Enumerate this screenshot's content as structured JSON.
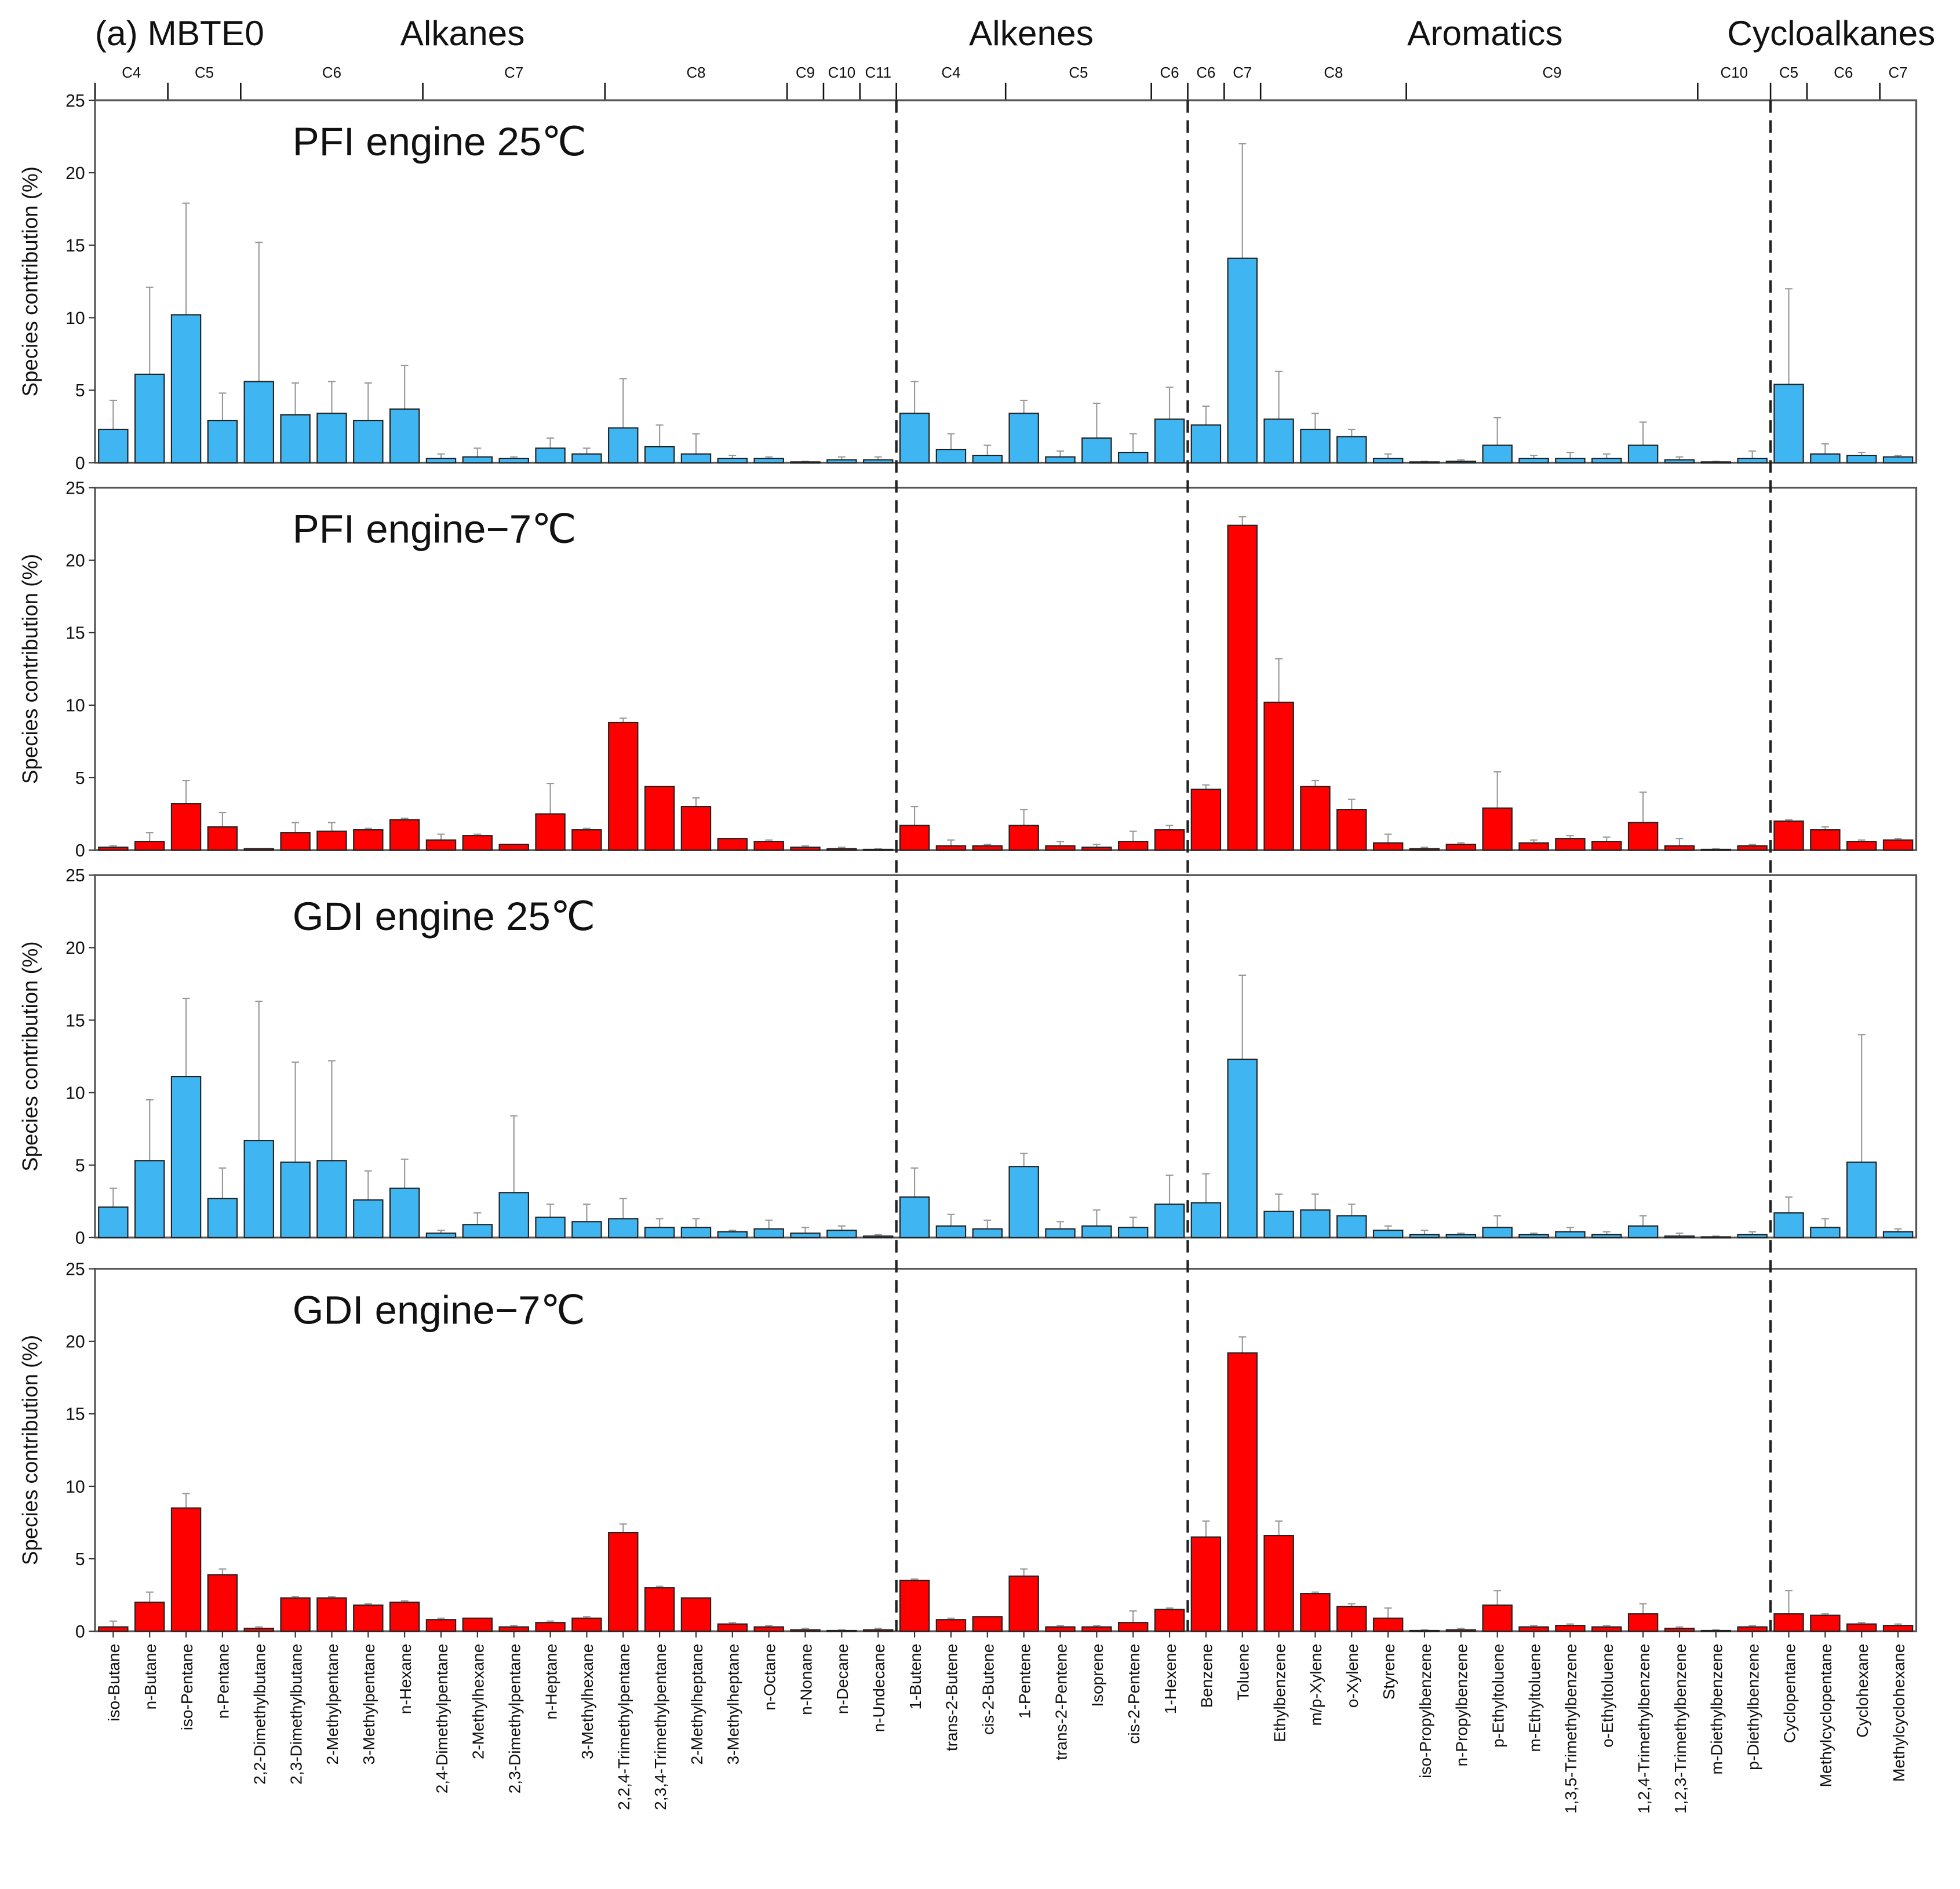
{
  "chart_data": {
    "type": "bar",
    "title": "(a) MBTE0",
    "ylabel": "Species contribution (%)",
    "ylim": [
      0,
      25
    ],
    "yticks": [
      0,
      5,
      10,
      15,
      20,
      25
    ],
    "families": [
      {
        "name": "Alkanes",
        "count": 22,
        "carbon_groups": [
          [
            "C4",
            2
          ],
          [
            "C5",
            2
          ],
          [
            "C6",
            5
          ],
          [
            "C7",
            5
          ],
          [
            "C8",
            5
          ],
          [
            "C9",
            1
          ],
          [
            "C10",
            1
          ],
          [
            "C11",
            1
          ]
        ]
      },
      {
        "name": "Alkenes",
        "count": 8,
        "carbon_groups": [
          [
            "C4",
            3
          ],
          [
            "C5",
            4
          ],
          [
            "C6",
            1
          ]
        ]
      },
      {
        "name": "Aromatics",
        "count": 16,
        "carbon_groups": [
          [
            "C6",
            1
          ],
          [
            "C7",
            1
          ],
          [
            "C8",
            4
          ],
          [
            "C9",
            8
          ],
          [
            "C10",
            2
          ]
        ]
      },
      {
        "name": "Cycloalkanes",
        "count": 4,
        "carbon_groups": [
          [
            "C5",
            1
          ],
          [
            "C6",
            2
          ],
          [
            "C7",
            1
          ]
        ]
      }
    ],
    "categories": [
      "iso-Butane",
      "n-Butane",
      "iso-Pentane",
      "n-Pentane",
      "2,2-Dimethylbutane",
      "2,3-Dimethylbutane",
      "2-Methylpentane",
      "3-Methylpentane",
      "n-Hexane",
      "2,4-Dimethylpentane",
      "2-Methylhexane",
      "2,3-Dimethylpentane",
      "n-Heptane",
      "3-Methylhexane",
      "2,2,4-Trimethylpentane",
      "2,3,4-Trimethylpentane",
      "2-Methylheptane",
      "3-Methylheptane",
      "n-Octane",
      "n-Nonane",
      "n-Decane",
      "n-Undecane",
      "1-Butene",
      "trans-2-Butene",
      "cis-2-Butene",
      "1-Pentene",
      "trans-2-Pentene",
      "Isoprene",
      "cis-2-Pentene",
      "1-Hexene",
      "Benzene",
      "Toluene",
      "Ethylbenzene",
      "m/p-Xylene",
      "o-Xylene",
      "Styrene",
      "iso-Propylbenzene",
      "n-Propylbenzene",
      "p-Ethyltoluene",
      "m-Ethyltoluene",
      "1,3,5-Trimethylbenzene",
      "o-Ethyltoluene",
      "1,2,4-Trimethylbenzene",
      "1,2,3-Trimethylbenzene",
      "m-Diethylbenzene",
      "p-Diethylbenzene",
      "Cyclopentane",
      "Methylcyclopentane",
      "Cyclohexane",
      "Methylcyclohexane"
    ],
    "series": [
      {
        "name": "PFI engine 25℃",
        "color": "#3fb6f2",
        "values": [
          2.3,
          6.1,
          10.2,
          2.9,
          5.6,
          3.3,
          3.4,
          2.9,
          3.7,
          0.3,
          0.4,
          0.3,
          1.0,
          0.6,
          2.4,
          1.1,
          0.6,
          0.3,
          0.3,
          0.05,
          0.2,
          0.2,
          3.4,
          0.9,
          0.5,
          3.4,
          0.4,
          1.7,
          0.7,
          3.0,
          2.6,
          14.1,
          3.0,
          2.3,
          1.8,
          0.3,
          0.05,
          0.1,
          1.2,
          0.3,
          0.3,
          0.3,
          1.2,
          0.2,
          0.05,
          0.3,
          5.4,
          0.6,
          0.5,
          0.4
        ],
        "error_upper": [
          4.3,
          12.1,
          17.9,
          4.8,
          15.2,
          5.5,
          5.6,
          5.5,
          6.7,
          0.6,
          1.0,
          0.4,
          1.7,
          1.0,
          5.8,
          2.6,
          2.0,
          0.5,
          0.4,
          0.1,
          0.4,
          0.4,
          5.6,
          2.0,
          1.2,
          4.3,
          0.8,
          4.1,
          2.0,
          5.2,
          3.9,
          22.0,
          6.3,
          3.4,
          2.3,
          0.6,
          0.1,
          0.2,
          3.1,
          0.5,
          0.7,
          0.6,
          2.8,
          0.4,
          0.1,
          0.8,
          12.0,
          1.3,
          0.7,
          0.5
        ]
      },
      {
        "name": "PFI engine−7℃",
        "color": "#ff0000",
        "values": [
          0.2,
          0.6,
          3.2,
          1.6,
          0.1,
          1.2,
          1.3,
          1.4,
          2.1,
          0.7,
          1.0,
          0.4,
          2.5,
          1.4,
          8.8,
          4.4,
          3.0,
          0.8,
          0.6,
          0.2,
          0.1,
          0.05,
          1.7,
          0.3,
          0.3,
          1.7,
          0.3,
          0.2,
          0.6,
          1.4,
          4.2,
          22.4,
          10.2,
          4.4,
          2.8,
          0.5,
          0.1,
          0.4,
          2.9,
          0.5,
          0.8,
          0.6,
          1.9,
          0.3,
          0.05,
          0.3,
          2.0,
          1.4,
          0.6,
          0.7
        ],
        "error_upper": [
          0.3,
          1.2,
          4.8,
          2.6,
          0.1,
          1.9,
          1.9,
          1.5,
          2.2,
          1.1,
          1.1,
          0.4,
          4.6,
          1.5,
          9.1,
          4.4,
          3.6,
          0.8,
          0.7,
          0.3,
          0.2,
          0.1,
          3.0,
          0.7,
          0.4,
          2.8,
          0.6,
          0.4,
          1.3,
          1.7,
          4.5,
          23.0,
          13.2,
          4.8,
          3.5,
          1.1,
          0.2,
          0.5,
          5.4,
          0.7,
          1.0,
          0.9,
          4.0,
          0.8,
          0.1,
          0.4,
          2.1,
          1.6,
          0.7,
          0.8
        ]
      },
      {
        "name": "GDI engine 25℃",
        "color": "#3fb6f2",
        "values": [
          2.1,
          5.3,
          11.1,
          2.7,
          6.7,
          5.2,
          5.3,
          2.6,
          3.4,
          0.3,
          0.9,
          3.1,
          1.4,
          1.1,
          1.3,
          0.7,
          0.7,
          0.4,
          0.6,
          0.3,
          0.5,
          0.1,
          2.8,
          0.8,
          0.6,
          4.9,
          0.6,
          0.8,
          0.7,
          2.3,
          2.4,
          12.3,
          1.8,
          1.9,
          1.5,
          0.5,
          0.2,
          0.2,
          0.7,
          0.2,
          0.4,
          0.2,
          0.8,
          0.1,
          0.05,
          0.2,
          1.7,
          0.7,
          5.2,
          0.4
        ],
        "error_upper": [
          3.4,
          9.5,
          16.5,
          4.8,
          16.3,
          12.1,
          12.2,
          4.6,
          5.4,
          0.5,
          1.7,
          8.4,
          2.3,
          2.3,
          2.7,
          1.3,
          1.3,
          0.5,
          1.2,
          0.7,
          0.8,
          0.2,
          4.8,
          1.6,
          1.2,
          5.8,
          1.1,
          1.9,
          1.4,
          4.3,
          4.4,
          18.1,
          3.0,
          3.0,
          2.3,
          0.8,
          0.5,
          0.3,
          1.5,
          0.3,
          0.7,
          0.4,
          1.5,
          0.3,
          0.1,
          0.4,
          2.8,
          1.3,
          14.0,
          0.6
        ]
      },
      {
        "name": "GDI engine−7℃",
        "color": "#ff0000",
        "values": [
          0.3,
          2.0,
          8.5,
          3.9,
          0.2,
          2.3,
          2.3,
          1.8,
          2.0,
          0.8,
          0.9,
          0.3,
          0.6,
          0.9,
          6.8,
          3.0,
          2.3,
          0.5,
          0.3,
          0.1,
          0.05,
          0.1,
          3.5,
          0.8,
          1.0,
          3.8,
          0.3,
          0.3,
          0.6,
          1.5,
          6.5,
          19.2,
          6.6,
          2.6,
          1.7,
          0.9,
          0.05,
          0.1,
          1.8,
          0.3,
          0.4,
          0.3,
          1.2,
          0.2,
          0.05,
          0.3,
          1.2,
          1.1,
          0.5,
          0.4
        ],
        "error_upper": [
          0.7,
          2.7,
          9.5,
          4.3,
          0.3,
          2.4,
          2.4,
          1.9,
          2.1,
          0.9,
          0.9,
          0.4,
          0.7,
          1.0,
          7.4,
          3.1,
          2.3,
          0.6,
          0.4,
          0.2,
          0.1,
          0.2,
          3.6,
          0.9,
          1.0,
          4.3,
          0.4,
          0.4,
          1.4,
          1.6,
          7.6,
          20.3,
          7.6,
          2.7,
          1.9,
          1.6,
          0.1,
          0.2,
          2.8,
          0.4,
          0.5,
          0.4,
          1.9,
          0.3,
          0.1,
          0.4,
          2.8,
          1.2,
          0.6,
          0.5
        ]
      }
    ]
  }
}
